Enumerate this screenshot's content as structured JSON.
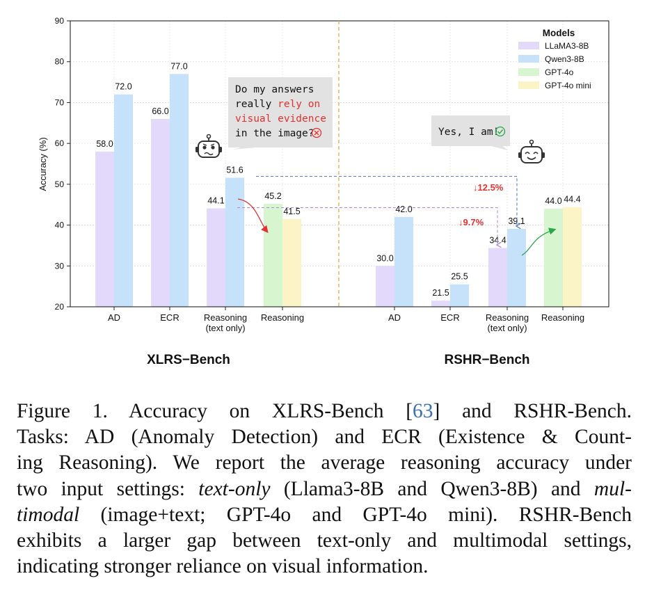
{
  "chart_data": {
    "type": "bar",
    "title": "",
    "ylabel": "Accuracy (%)",
    "ylim": [
      20,
      90
    ],
    "yticks": [
      20,
      30,
      40,
      50,
      60,
      70,
      80,
      90
    ],
    "grid": true,
    "legend": {
      "title": "Models",
      "placement": "top-right",
      "entries": [
        {
          "name": "LLaMA3-8B",
          "color": "#e2d9fb"
        },
        {
          "name": "Qwen3-8B",
          "color": "#c6e2fb"
        },
        {
          "name": "GPT-4o",
          "color": "#d7f5cf"
        },
        {
          "name": "GPT-4o mini",
          "color": "#fbf4c6"
        }
      ]
    },
    "groups": [
      {
        "name": "XLRS−Bench",
        "categories": [
          {
            "label": "AD",
            "bars": [
              {
                "series": "LLaMA3-8B",
                "value": 58.0,
                "text": "58.0"
              },
              {
                "series": "Qwen3-8B",
                "value": 72.0,
                "text": "72.0"
              }
            ]
          },
          {
            "label": "ECR",
            "bars": [
              {
                "series": "LLaMA3-8B",
                "value": 66.0,
                "text": "66.0"
              },
              {
                "series": "Qwen3-8B",
                "value": 77.0,
                "text": "77.0"
              }
            ]
          },
          {
            "label": "Reasoning\n(text only)",
            "bars": [
              {
                "series": "LLaMA3-8B",
                "value": 44.1,
                "text": "44.1"
              },
              {
                "series": "Qwen3-8B",
                "value": 51.6,
                "text": "51.6"
              }
            ]
          },
          {
            "label": "Reasoning",
            "bars": [
              {
                "series": "GPT-4o",
                "value": 45.2,
                "text": "45.2"
              },
              {
                "series": "GPT-4o mini",
                "value": 41.5,
                "text": "41.5"
              }
            ]
          }
        ]
      },
      {
        "name": "RSHR−Bench",
        "categories": [
          {
            "label": "AD",
            "bars": [
              {
                "series": "LLaMA3-8B",
                "value": 30.0,
                "text": "30.0"
              },
              {
                "series": "Qwen3-8B",
                "value": 42.0,
                "text": "42.0"
              }
            ]
          },
          {
            "label": "ECR",
            "bars": [
              {
                "series": "LLaMA3-8B",
                "value": 21.5,
                "text": "21.5"
              },
              {
                "series": "Qwen3-8B",
                "value": 25.5,
                "text": "25.5"
              }
            ]
          },
          {
            "label": "Reasoning\n(text only)",
            "bars": [
              {
                "series": "LLaMA3-8B",
                "value": 34.4,
                "text": "34.4"
              },
              {
                "series": "Qwen3-8B",
                "value": 39.1,
                "text": "39.1"
              }
            ]
          },
          {
            "label": "Reasoning",
            "bars": [
              {
                "series": "GPT-4o",
                "value": 44.0,
                "text": "44.0"
              },
              {
                "series": "GPT-4o mini",
                "value": 44.4,
                "text": "44.4"
              }
            ]
          }
        ]
      }
    ],
    "annotations": {
      "drop_qwen": "↓12.5%",
      "drop_llama": "↓9.7%",
      "bubble_left": [
        "Do my answers",
        "really ",
        "rely on",
        "visual evidence",
        "in the image?"
      ],
      "bubble_right": "Yes, I am!"
    }
  },
  "caption": {
    "l1a": "Figure 1.  Accuracy on XLRS-Bench [",
    "l1cite": "63",
    "l1b": "] and RSHR-Bench.",
    "l2": "Tasks:  AD (Anomaly Detection) and ECR (Existence & Count-",
    "l3": "ing Reasoning).  We report the average reasoning accuracy under",
    "l4a": "two input settings: ",
    "l4it": "text-only",
    "l4b": " (Llama3-8B and Qwen3-8B) and ",
    "l4it2": "mul-",
    "l5it": "timodal",
    "l5b": " (image+text; GPT-4o and GPT-4o mini).  RSHR-Bench",
    "l6": "exhibits a larger gap between text-only and multimodal settings,",
    "l7": "indicating stronger reliance on visual information."
  }
}
